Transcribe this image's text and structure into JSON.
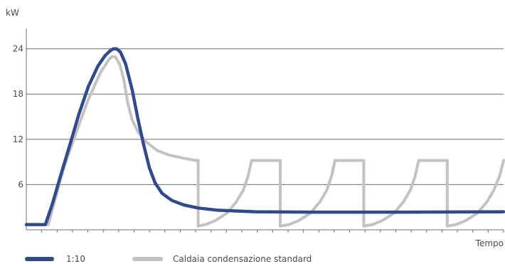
{
  "chart_data": {
    "type": "line",
    "ylabel": "kW",
    "xlabel": "Tempo",
    "ylim": [
      0,
      26.7
    ],
    "yticks": [
      6,
      12,
      18,
      24
    ],
    "xlim": [
      0,
      100
    ],
    "x_tick_count": 31,
    "grid": "horizontal",
    "legend_position": "bottom-left",
    "series": [
      {
        "name": "1:10",
        "color": "#2f4b8c",
        "points": [
          [
            0,
            0.7
          ],
          [
            2.7,
            0.7
          ],
          [
            4,
            0.7
          ],
          [
            5.5,
            3.5
          ],
          [
            7,
            6.8
          ],
          [
            9,
            11
          ],
          [
            11,
            15.3
          ],
          [
            13,
            19
          ],
          [
            15,
            21.7
          ],
          [
            16.5,
            23.1
          ],
          [
            17.5,
            23.7
          ],
          [
            18.2,
            24
          ],
          [
            18.9,
            24
          ],
          [
            19.7,
            23.6
          ],
          [
            20.8,
            22
          ],
          [
            22.2,
            18.5
          ],
          [
            23.3,
            15
          ],
          [
            24.5,
            11.5
          ],
          [
            25.8,
            8.2
          ],
          [
            27,
            6.2
          ],
          [
            28.5,
            4.8
          ],
          [
            30.5,
            3.9
          ],
          [
            33,
            3.3
          ],
          [
            36,
            2.9
          ],
          [
            40,
            2.6
          ],
          [
            48,
            2.4
          ],
          [
            60,
            2.35
          ],
          [
            80,
            2.35
          ],
          [
            100,
            2.4
          ]
        ]
      },
      {
        "name": "Caldaia condensazione standard",
        "color": "#c2c2c2",
        "points": [
          [
            0,
            0.7
          ],
          [
            3.2,
            0.7
          ],
          [
            4.6,
            0.7
          ],
          [
            6,
            4
          ],
          [
            8,
            8.5
          ],
          [
            10.5,
            13
          ],
          [
            13,
            17.3
          ],
          [
            15.5,
            20.8
          ],
          [
            17.3,
            22.6
          ],
          [
            18,
            23
          ],
          [
            18.7,
            22.9
          ],
          [
            19.6,
            21.9
          ],
          [
            20.4,
            20
          ],
          [
            21.2,
            17
          ],
          [
            22.1,
            14.7
          ],
          [
            23.4,
            13
          ],
          [
            25,
            11.7
          ],
          [
            27.5,
            10.5
          ],
          [
            30,
            9.9
          ],
          [
            33,
            9.5
          ],
          [
            35.5,
            9.2
          ],
          [
            36,
            9.2
          ],
          [
            36,
            0.5
          ],
          [
            37.5,
            0.7
          ],
          [
            39.5,
            1.2
          ],
          [
            42,
            2.2
          ],
          [
            44,
            3.7
          ],
          [
            45.5,
            5.3
          ],
          [
            46.5,
            7.2
          ],
          [
            47.2,
            9.2
          ],
          [
            53.2,
            9.2
          ],
          [
            53.2,
            0.5
          ],
          [
            55,
            0.7
          ],
          [
            57,
            1.2
          ],
          [
            59.5,
            2.2
          ],
          [
            61.5,
            3.7
          ],
          [
            63,
            5.3
          ],
          [
            64,
            7.2
          ],
          [
            64.7,
            9.2
          ],
          [
            70.7,
            9.2
          ],
          [
            70.7,
            0.5
          ],
          [
            72.5,
            0.7
          ],
          [
            74.5,
            1.2
          ],
          [
            77,
            2.2
          ],
          [
            79,
            3.7
          ],
          [
            80.5,
            5.3
          ],
          [
            81.5,
            7.2
          ],
          [
            82.2,
            9.2
          ],
          [
            88.2,
            9.2
          ],
          [
            88.2,
            0.5
          ],
          [
            90,
            0.7
          ],
          [
            92,
            1.2
          ],
          [
            94.5,
            2.2
          ],
          [
            96.5,
            3.7
          ],
          [
            98,
            5.3
          ],
          [
            99.2,
            7.2
          ],
          [
            100,
            9.2
          ]
        ]
      }
    ]
  }
}
